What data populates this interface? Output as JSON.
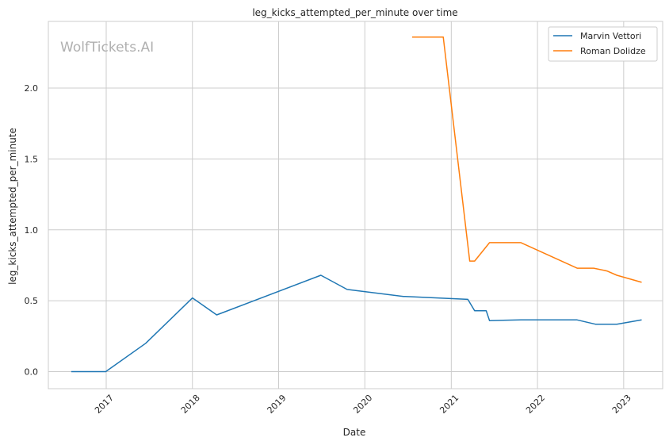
{
  "chart_data": {
    "type": "line",
    "title": "leg_kicks_attempted_per_minute over time",
    "xlabel": "Date",
    "ylabel": "leg_kicks_attempted_per_minute",
    "watermark": "WolfTickets.AI",
    "xlim": [
      "2016-05-01",
      "2023-06-15"
    ],
    "ylim": [
      -0.12,
      2.47
    ],
    "x_ticks": [
      {
        "label": "2017",
        "date": "2017-01-01"
      },
      {
        "label": "2018",
        "date": "2018-01-01"
      },
      {
        "label": "2019",
        "date": "2019-01-01"
      },
      {
        "label": "2020",
        "date": "2020-01-01"
      },
      {
        "label": "2021",
        "date": "2021-01-01"
      },
      {
        "label": "2022",
        "date": "2022-01-01"
      },
      {
        "label": "2023",
        "date": "2023-01-01"
      }
    ],
    "y_ticks": [
      {
        "label": "0.0",
        "value": 0.0
      },
      {
        "label": "0.5",
        "value": 0.5
      },
      {
        "label": "1.0",
        "value": 1.0
      },
      {
        "label": "1.5",
        "value": 1.5
      },
      {
        "label": "2.0",
        "value": 2.0
      }
    ],
    "grid": true,
    "legend_position": "top-right",
    "series": [
      {
        "name": "Marvin Vettori",
        "color": "#1f77b4",
        "points": [
          {
            "x": "2016-08-06",
            "y": 0.0
          },
          {
            "x": "2016-12-30",
            "y": 0.0
          },
          {
            "x": "2017-06-17",
            "y": 0.2
          },
          {
            "x": "2018-01-01",
            "y": 0.52
          },
          {
            "x": "2018-04-14",
            "y": 0.4
          },
          {
            "x": "2019-06-29",
            "y": 0.68
          },
          {
            "x": "2019-10-18",
            "y": 0.58
          },
          {
            "x": "2020-06-13",
            "y": 0.53
          },
          {
            "x": "2020-06-20",
            "y": 0.53
          },
          {
            "x": "2021-03-12",
            "y": 0.51
          },
          {
            "x": "2021-04-10",
            "y": 0.43
          },
          {
            "x": "2021-05-29",
            "y": 0.43
          },
          {
            "x": "2021-06-12",
            "y": 0.36
          },
          {
            "x": "2021-10-23",
            "y": 0.365
          },
          {
            "x": "2022-06-18",
            "y": 0.365
          },
          {
            "x": "2022-09-03",
            "y": 0.335
          },
          {
            "x": "2022-12-03",
            "y": 0.335
          },
          {
            "x": "2023-03-18",
            "y": 0.365
          }
        ]
      },
      {
        "name": "Roman Dolidze",
        "color": "#ff7f0e",
        "points": [
          {
            "x": "2020-07-19",
            "y": 2.36
          },
          {
            "x": "2020-11-28",
            "y": 2.36
          },
          {
            "x": "2021-03-20",
            "y": 0.78
          },
          {
            "x": "2021-04-10",
            "y": 0.78
          },
          {
            "x": "2021-06-12",
            "y": 0.91
          },
          {
            "x": "2021-10-23",
            "y": 0.91
          },
          {
            "x": "2022-06-18",
            "y": 0.73
          },
          {
            "x": "2022-08-27",
            "y": 0.73
          },
          {
            "x": "2022-10-22",
            "y": 0.71
          },
          {
            "x": "2022-12-03",
            "y": 0.68
          },
          {
            "x": "2023-03-18",
            "y": 0.63
          }
        ]
      }
    ]
  }
}
